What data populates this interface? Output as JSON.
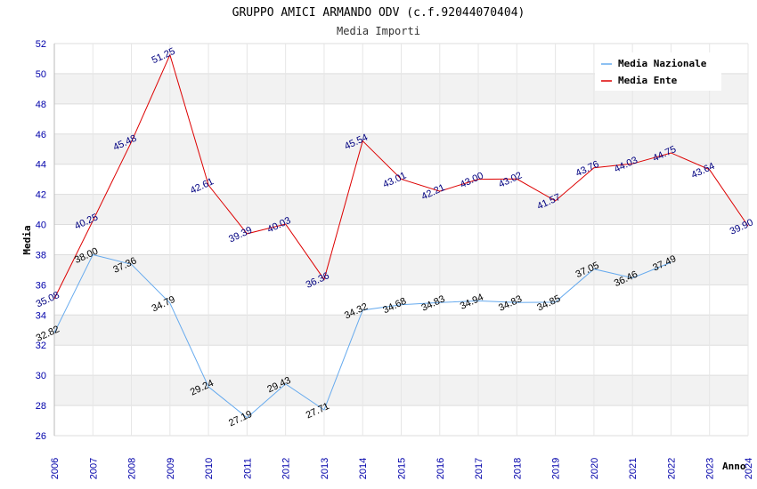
{
  "chart_data": {
    "type": "line",
    "title": "GRUPPO AMICI ARMANDO ODV (c.f.92044070404)",
    "subtitle": "Media Importi",
    "xlabel": "Anno",
    "ylabel": "Media",
    "ylim": [
      26,
      52
    ],
    "yticks": [
      26,
      28,
      30,
      32,
      34,
      36,
      38,
      40,
      42,
      44,
      46,
      48,
      50,
      52
    ],
    "x": [
      "2006",
      "2007",
      "2008",
      "2009",
      "2010",
      "2011",
      "2012",
      "2013",
      "2014",
      "2015",
      "2016",
      "2017",
      "2018",
      "2019",
      "2020",
      "2021",
      "2022",
      "2023",
      "2024"
    ],
    "grid": "horizontal",
    "legend_position": "top-right",
    "series": [
      {
        "name": "Media Nazionale",
        "color": "#66aaee",
        "values": [
          32.82,
          38.0,
          37.36,
          34.79,
          29.24,
          27.19,
          29.43,
          27.71,
          34.32,
          34.68,
          34.83,
          34.94,
          34.83,
          34.85,
          37.05,
          36.46,
          37.49,
          null,
          null
        ],
        "labels": [
          "32.82",
          "38.00",
          "37.36",
          "34.79",
          "29.24",
          "27.19",
          "29.43",
          "27.71",
          "34.32",
          "34.68",
          "34.83",
          "34.94",
          "34.83",
          "34.85",
          "37.05",
          "36.46",
          "37.49",
          null,
          null
        ]
      },
      {
        "name": "Media Ente",
        "color": "#dd0000",
        "values": [
          35.08,
          40.25,
          45.48,
          51.25,
          42.61,
          39.39,
          40.03,
          36.36,
          45.54,
          43.01,
          42.21,
          43.0,
          43.02,
          41.57,
          43.76,
          44.03,
          44.75,
          43.64,
          39.9
        ],
        "labels": [
          "35.08",
          "40.25",
          "45.48",
          "51.25",
          "42.61",
          "39.39",
          "40.03",
          "36.36",
          "45.54",
          "43.01",
          "42.21",
          "43.00",
          "43.02",
          "41.57",
          "43.76",
          "44.03",
          "44.75",
          "43.64",
          "39.90"
        ]
      }
    ]
  }
}
